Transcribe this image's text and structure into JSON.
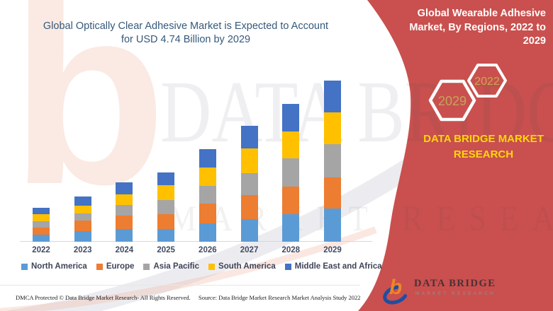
{
  "left_title": {
    "line1": "Global Optically Clear Adhesive Market is Expected to Account",
    "line2": "for USD 4.74 Billion by 2029"
  },
  "right_panel": {
    "heading": "Global Wearable Adhesive Market, By Regions, 2022 to 2029",
    "bg_color": "#C9504E",
    "hex_front_label": "2029",
    "hex_back_label": "2022",
    "hex_text_color": "#C3A45C",
    "brand_text": "DATA BRIDGE MARKET RESEARCH",
    "brand_color": "#FFD60A"
  },
  "watermarks": {
    "big_letter": "b",
    "row1": "DATA BRIDGE",
    "row2": "MARKET RESEARCH"
  },
  "chart_data": {
    "type": "bar",
    "stacked": true,
    "title": "Global Optically Clear Adhesive Market is Expected to Account for USD 4.74 Billion by 2029",
    "unit": "USD Billion",
    "xlabel": "",
    "ylabel": "",
    "ylim": [
      0,
      5
    ],
    "grid": false,
    "legend_position": "bottom",
    "categories": [
      "2022",
      "2023",
      "2024",
      "2025",
      "2026",
      "2027",
      "2028",
      "2029"
    ],
    "series": [
      {
        "name": "North America",
        "color": "#5B9BD5",
        "values": [
          0.2,
          0.31,
          0.37,
          0.38,
          0.54,
          0.66,
          0.82,
          0.98
        ]
      },
      {
        "name": "Europe",
        "color": "#ED7D31",
        "values": [
          0.21,
          0.31,
          0.4,
          0.44,
          0.58,
          0.71,
          0.8,
          0.92
        ]
      },
      {
        "name": "Asia Pacific",
        "color": "#A5A5A5",
        "values": [
          0.2,
          0.22,
          0.31,
          0.4,
          0.52,
          0.66,
          0.83,
          0.98
        ]
      },
      {
        "name": "South America",
        "color": "#FFC000",
        "values": [
          0.2,
          0.23,
          0.31,
          0.45,
          0.55,
          0.73,
          0.8,
          0.94
        ]
      },
      {
        "name": "Middle East and Africa",
        "color": "#4472C4",
        "values": [
          0.19,
          0.27,
          0.35,
          0.38,
          0.53,
          0.65,
          0.82,
          0.92
        ]
      }
    ],
    "totals": [
      1.0,
      1.34,
      1.74,
      2.05,
      2.72,
      3.41,
      4.07,
      4.74
    ]
  },
  "logo": {
    "name": "DATA BRIDGE",
    "subtitle": "MARKET RESEARCH"
  },
  "footer": {
    "dmca": "DMCA Protected © Data Bridge Market Research- All Rights Reserved.",
    "source": "Source: Data Bridge Market Research Market Analysis Study 2022"
  }
}
